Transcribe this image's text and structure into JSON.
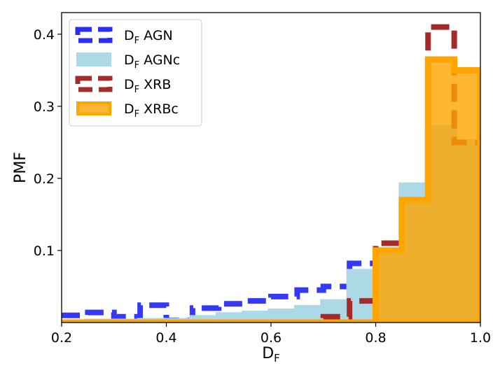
{
  "chart_data": {
    "type": "histogram-step",
    "xlabel": "D_F",
    "ylabel": "PMF",
    "xlim": [
      0.2,
      1.0
    ],
    "ylim": [
      0.0,
      0.43
    ],
    "xticks": [
      "0.2",
      "0.4",
      "0.6",
      "0.8",
      "1.0"
    ],
    "yticks": [
      "0.1",
      "0.2",
      "0.3",
      "0.4"
    ],
    "grid": false,
    "legend_placement": "top-left",
    "bin_edges": [
      0.2,
      0.25,
      0.3,
      0.35,
      0.4,
      0.45,
      0.5,
      0.55,
      0.6,
      0.65,
      0.7,
      0.75,
      0.8,
      0.85,
      0.9,
      0.95,
      1.0
    ],
    "series": [
      {
        "name": "D_F AGN",
        "name_main": "D",
        "name_sub": "F",
        "name_rest": " AGN",
        "style": "step-dashed",
        "color": "#2a2ef5",
        "values": [
          0.01,
          0.014,
          0.008,
          0.024,
          0.003,
          0.02,
          0.026,
          0.03,
          0.036,
          0.045,
          0.05,
          0.082,
          0.095,
          0.135,
          0.18,
          0.2
        ]
      },
      {
        "name": "D_F AGNc",
        "name_main": "D",
        "name_sub": "F",
        "name_rest": " AGNc",
        "style": "step-filled",
        "color": "#add8e6",
        "values": [
          0.0,
          0.001,
          0.001,
          0.002,
          0.002,
          0.006,
          0.01,
          0.012,
          0.015,
          0.02,
          0.028,
          0.07,
          0.1,
          0.19,
          0.27,
          0.25
        ]
      },
      {
        "name": "D_F XRB",
        "name_main": "D",
        "name_sub": "F",
        "name_rest": " XRB",
        "style": "step-dashed",
        "color": "#a52a2a",
        "values": [
          0.0,
          0.0,
          0.0,
          0.0,
          0.0,
          0.0,
          0.0,
          0.0,
          0.0,
          0.0,
          0.008,
          0.03,
          0.11,
          0.17,
          0.41,
          0.25
        ]
      },
      {
        "name": "D_F XRBc",
        "name_main": "D",
        "name_sub": "F",
        "name_rest": " XRBc",
        "style": "step-filled",
        "color": "#ffa500",
        "values": [
          0.0,
          0.0,
          0.0,
          0.0,
          0.0,
          0.0,
          0.0,
          0.0,
          0.0,
          0.0,
          0.0,
          0.0,
          0.1,
          0.17,
          0.365,
          0.35
        ]
      }
    ]
  },
  "axes": {
    "xlabel_main": "D",
    "xlabel_sub": "F",
    "ylabel": "PMF"
  }
}
